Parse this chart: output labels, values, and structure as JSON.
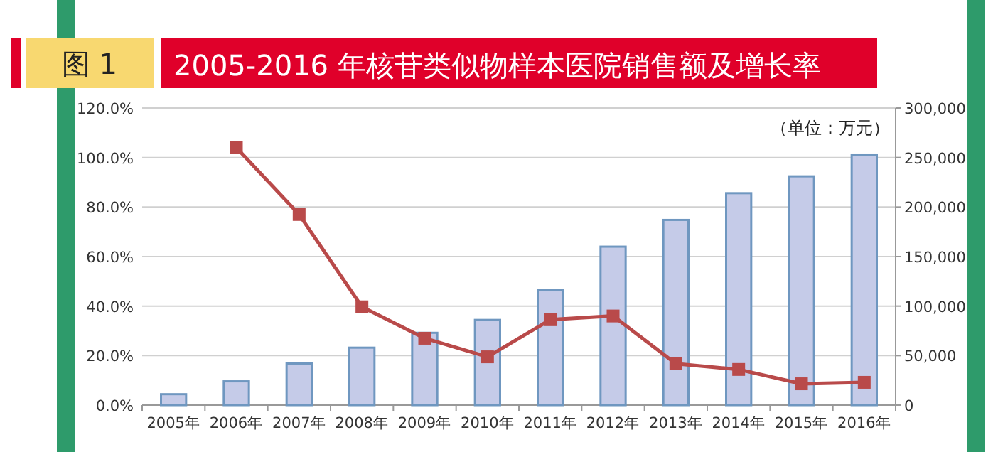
{
  "chart_data": {
    "type": "bar",
    "title": "2005-2016 年核苷类似物样本医院销售额及增长率",
    "annotations": [
      "图 1"
    ],
    "y2label": "（单位：万元）",
    "categories": [
      "2005年",
      "2006年",
      "2007年",
      "2008年",
      "2009年",
      "2010年",
      "2011年",
      "2012年",
      "2013年",
      "2014年",
      "2015年",
      "2016年"
    ],
    "series": [
      {
        "axis": "y2",
        "color": "#c5cbe8",
        "values": [
          11000,
          24000,
          42000,
          58000,
          73000,
          86000,
          116000,
          160000,
          187000,
          214000,
          231000,
          253000
        ]
      },
      {
        "type": "line",
        "axis": "y",
        "color": "#b94a4a",
        "marker": "square",
        "values": [
          null,
          104,
          77,
          39.7,
          27,
          19.5,
          34.5,
          36,
          16.7,
          14.4,
          8.6,
          9.2
        ]
      }
    ],
    "ylim": [
      0,
      120
    ],
    "yticks": [
      {
        "value": 0,
        "label": "0.0%"
      },
      {
        "value": 20,
        "label": "20.0%"
      },
      {
        "value": 40,
        "label": "40.0%"
      },
      {
        "value": 60,
        "label": "60.0%"
      },
      {
        "value": 80,
        "label": "80.0%"
      },
      {
        "value": 100,
        "label": "100.0%"
      },
      {
        "value": 120,
        "label": "120.0%"
      }
    ],
    "y2lim": [
      0,
      300000
    ],
    "y2ticks": [
      0,
      {
        "value": 50000,
        "label": "50,000"
      },
      {
        "value": 100000,
        "label": "100,000"
      },
      {
        "value": 150000,
        "label": "150,000"
      },
      {
        "value": 200000,
        "label": "200,000"
      },
      {
        "value": 250000,
        "label": "250,000"
      },
      {
        "value": 300000,
        "label": "300,000"
      }
    ],
    "grid": "y"
  }
}
